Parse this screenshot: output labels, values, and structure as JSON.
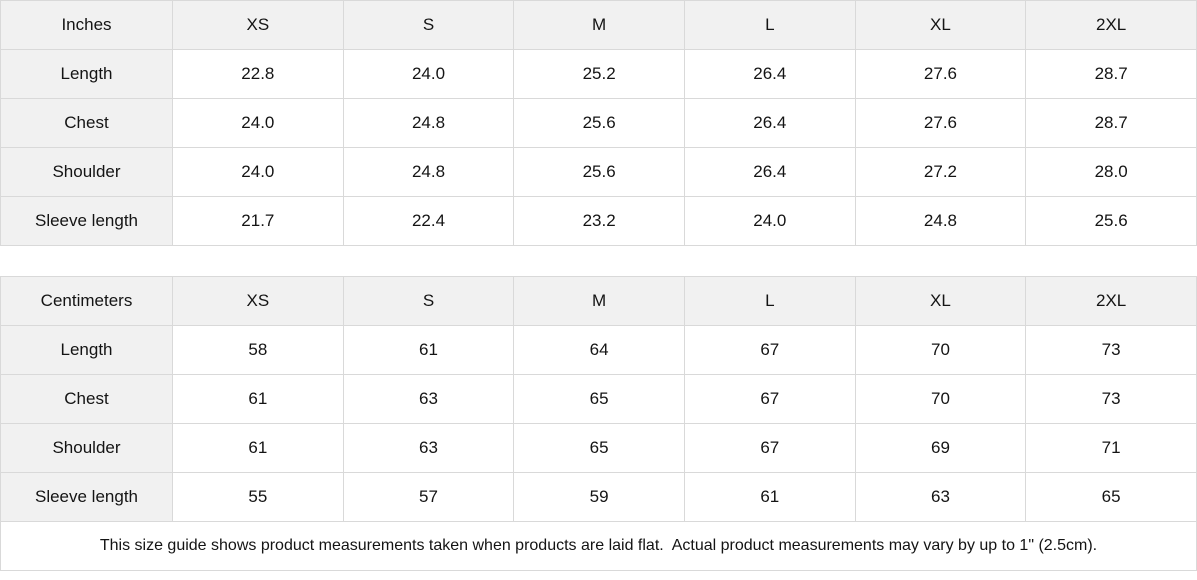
{
  "theme": {
    "border_color": "#d9d9d9",
    "header_bg": "#f1f1f1",
    "cell_bg": "#ffffff",
    "text_color": "#141414"
  },
  "tables": [
    {
      "unit_label": "Inches",
      "columns": [
        "XS",
        "S",
        "M",
        "L",
        "XL",
        "2XL"
      ],
      "rows": [
        {
          "label": "Length",
          "values": [
            "22.8",
            "24.0",
            "25.2",
            "26.4",
            "27.6",
            "28.7"
          ]
        },
        {
          "label": "Chest",
          "values": [
            "24.0",
            "24.8",
            "25.6",
            "26.4",
            "27.6",
            "28.7"
          ]
        },
        {
          "label": "Shoulder",
          "values": [
            "24.0",
            "24.8",
            "25.6",
            "26.4",
            "27.2",
            "28.0"
          ]
        },
        {
          "label": "Sleeve length",
          "values": [
            "21.7",
            "22.4",
            "23.2",
            "24.0",
            "24.8",
            "25.6"
          ]
        }
      ]
    },
    {
      "unit_label": "Centimeters",
      "columns": [
        "XS",
        "S",
        "M",
        "L",
        "XL",
        "2XL"
      ],
      "rows": [
        {
          "label": "Length",
          "values": [
            "58",
            "61",
            "64",
            "67",
            "70",
            "73"
          ]
        },
        {
          "label": "Chest",
          "values": [
            "61",
            "63",
            "65",
            "67",
            "70",
            "73"
          ]
        },
        {
          "label": "Shoulder",
          "values": [
            "61",
            "63",
            "65",
            "67",
            "69",
            "71"
          ]
        },
        {
          "label": "Sleeve length",
          "values": [
            "55",
            "57",
            "59",
            "61",
            "63",
            "65"
          ]
        }
      ]
    }
  ],
  "footer_note": "This size guide shows product measurements taken when products are laid flat.  Actual product measurements may vary by up to 1\" (2.5cm)."
}
